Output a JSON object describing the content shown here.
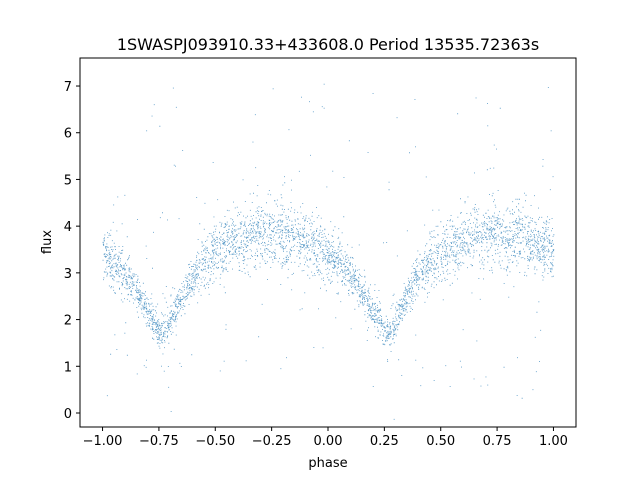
{
  "chart_data": {
    "type": "scatter",
    "title": "1SWASPJ093910.33+433608.0 Period 13535.72363s",
    "xlabel": "phase",
    "ylabel": "flux",
    "xlim": [
      -1.1,
      1.1
    ],
    "ylim": [
      -0.3,
      7.6
    ],
    "xticks": [
      -1.0,
      -0.75,
      -0.5,
      -0.25,
      0.0,
      0.25,
      0.5,
      0.75,
      1.0
    ],
    "xtick_labels": [
      "−1.00",
      "−0.75",
      "−0.50",
      "−0.25",
      "0.00",
      "0.25",
      "0.50",
      "0.75",
      "1.00"
    ],
    "yticks": [
      0,
      1,
      2,
      3,
      4,
      5,
      6,
      7
    ],
    "ytick_labels": [
      "0",
      "1",
      "2",
      "3",
      "4",
      "5",
      "6",
      "7"
    ],
    "grid": false,
    "legend": "none",
    "series": [
      {
        "color": "#1f77b4",
        "marker": "point",
        "x_range": [
          -1.0,
          1.0
        ],
        "description_points": [
          [
            -1.0,
            3.45
          ],
          [
            -0.95,
            3.2
          ],
          [
            -0.9,
            2.95
          ],
          [
            -0.85,
            2.6
          ],
          [
            -0.8,
            2.15
          ],
          [
            -0.75,
            1.75
          ],
          [
            -0.72,
            1.75
          ],
          [
            -0.7,
            2.0
          ],
          [
            -0.65,
            2.5
          ],
          [
            -0.6,
            2.95
          ],
          [
            -0.55,
            3.25
          ],
          [
            -0.5,
            3.45
          ],
          [
            -0.45,
            3.6
          ],
          [
            -0.4,
            3.7
          ],
          [
            -0.35,
            3.78
          ],
          [
            -0.3,
            3.82
          ],
          [
            -0.25,
            3.85
          ],
          [
            -0.2,
            3.82
          ],
          [
            -0.15,
            3.75
          ],
          [
            -0.1,
            3.65
          ],
          [
            -0.05,
            3.55
          ],
          [
            0.0,
            3.45
          ],
          [
            0.05,
            3.2
          ],
          [
            0.1,
            2.95
          ],
          [
            0.15,
            2.6
          ],
          [
            0.2,
            2.15
          ],
          [
            0.25,
            1.75
          ],
          [
            0.28,
            1.75
          ],
          [
            0.3,
            2.0
          ],
          [
            0.35,
            2.5
          ],
          [
            0.4,
            2.95
          ],
          [
            0.45,
            3.25
          ],
          [
            0.5,
            3.45
          ],
          [
            0.55,
            3.6
          ],
          [
            0.6,
            3.7
          ],
          [
            0.65,
            3.78
          ],
          [
            0.7,
            3.82
          ],
          [
            0.75,
            3.85
          ],
          [
            0.8,
            3.82
          ],
          [
            0.85,
            3.75
          ],
          [
            0.9,
            3.65
          ],
          [
            0.95,
            3.55
          ],
          [
            1.0,
            3.45
          ]
        ]
      }
    ]
  }
}
